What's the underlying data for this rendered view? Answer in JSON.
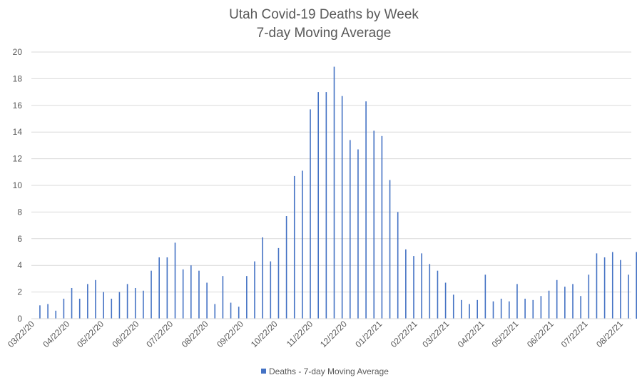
{
  "chart_data": {
    "type": "bar",
    "title": "Utah Covid-19 Deaths by Week",
    "subtitle": "7-day Moving Average",
    "xlabel": "",
    "ylabel": "",
    "ylim": [
      0,
      20
    ],
    "yticks": [
      0,
      2,
      4,
      6,
      8,
      10,
      12,
      14,
      16,
      18,
      20
    ],
    "grid": true,
    "legend_position": "bottom",
    "color": "#4472C4",
    "x_tick_labels": [
      "03/22/20",
      "04/22/20",
      "05/22/20",
      "06/22/20",
      "07/22/20",
      "08/22/20",
      "09/22/20",
      "10/22/20",
      "11/22/20",
      "12/22/20",
      "01/22/21",
      "02/22/21",
      "03/22/21",
      "04/22/21",
      "05/22/21",
      "06/22/21",
      "07/22/21",
      "08/22/21"
    ],
    "series": [
      {
        "name": "Deaths - 7-day  Moving Average",
        "values": [
          1.0,
          1.1,
          0.6,
          1.5,
          2.3,
          1.5,
          2.6,
          2.9,
          2.0,
          1.5,
          2.0,
          2.6,
          2.3,
          2.1,
          3.6,
          4.6,
          4.6,
          5.7,
          3.7,
          4.0,
          3.6,
          2.7,
          1.1,
          3.2,
          1.2,
          0.9,
          3.2,
          4.3,
          6.1,
          4.3,
          5.3,
          7.7,
          10.7,
          11.1,
          15.7,
          17.0,
          17.0,
          18.9,
          16.7,
          13.4,
          12.7,
          16.3,
          14.1,
          13.7,
          10.4,
          8.0,
          5.2,
          4.7,
          4.9,
          4.1,
          3.6,
          2.7,
          1.8,
          1.4,
          1.1,
          1.4,
          3.3,
          1.3,
          1.5,
          1.3,
          2.6,
          1.5,
          1.4,
          1.7,
          2.1,
          2.9,
          2.4,
          2.6,
          1.7,
          3.3,
          4.9,
          4.6,
          5.0,
          4.4,
          3.3,
          5.0
        ]
      }
    ]
  }
}
